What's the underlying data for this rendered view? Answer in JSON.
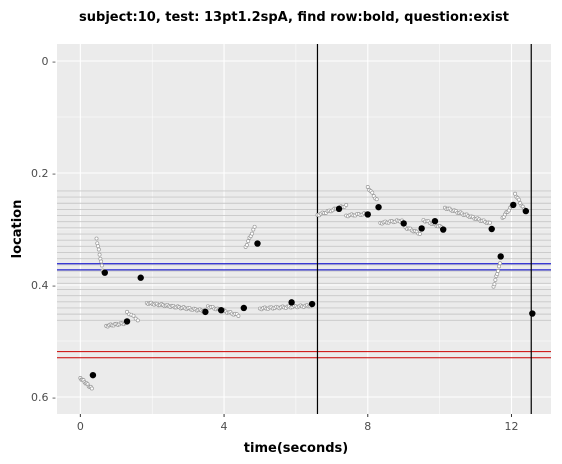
{
  "chart_data": {
    "type": "scatter",
    "title": "subject:10, test: 13pt1.2spA, find row:bold, question:exist",
    "xlabel": "time(seconds)",
    "ylabel": "location",
    "xlim": [
      -0.65,
      13.1
    ],
    "ylim": [
      0.0,
      0.6
    ],
    "y_reversed": true,
    "x_ticks": [
      0,
      4,
      8,
      12
    ],
    "x_tick_labels": [
      "0",
      "4",
      "8",
      "12"
    ],
    "y_ticks": [
      0.0,
      0.2,
      0.4,
      0.6
    ],
    "y_tick_labels": [
      "0 -",
      "0.2 -",
      "0.4 -",
      "0.6 -"
    ],
    "grid": true,
    "legend": "none",
    "colors": {
      "panel": "#ebebeb",
      "grid": "#ffffff",
      "text_rows": "#c8c8c8",
      "blue_band": "#0000cc",
      "red_band": "#cc0000",
      "vlines": "#000000",
      "fixation": "#000000",
      "samples": "#9a9a9a"
    },
    "text_row_lines": [
      0.232,
      0.243,
      0.254,
      0.265,
      0.276,
      0.287,
      0.298,
      0.309,
      0.32,
      0.331,
      0.342,
      0.353,
      0.364,
      0.375,
      0.386,
      0.397,
      0.408,
      0.419,
      0.43,
      0.441,
      0.452,
      0.463
    ],
    "blue_hlines": [
      0.362,
      0.373
    ],
    "red_hlines": [
      0.519,
      0.53
    ],
    "vertical_lines": [
      6.6,
      12.55
    ],
    "fixations": [
      {
        "x": 0.35,
        "y": 0.561
      },
      {
        "x": 0.68,
        "y": 0.378
      },
      {
        "x": 1.3,
        "y": 0.465
      },
      {
        "x": 1.68,
        "y": 0.387
      },
      {
        "x": 3.48,
        "y": 0.448
      },
      {
        "x": 3.92,
        "y": 0.445
      },
      {
        "x": 4.55,
        "y": 0.441
      },
      {
        "x": 4.93,
        "y": 0.326
      },
      {
        "x": 5.88,
        "y": 0.431
      },
      {
        "x": 6.45,
        "y": 0.434
      },
      {
        "x": 7.2,
        "y": 0.264
      },
      {
        "x": 8.0,
        "y": 0.274
      },
      {
        "x": 8.3,
        "y": 0.261
      },
      {
        "x": 9.0,
        "y": 0.29
      },
      {
        "x": 9.5,
        "y": 0.299
      },
      {
        "x": 9.87,
        "y": 0.286
      },
      {
        "x": 10.1,
        "y": 0.301
      },
      {
        "x": 11.45,
        "y": 0.3
      },
      {
        "x": 11.7,
        "y": 0.349
      },
      {
        "x": 12.05,
        "y": 0.257
      },
      {
        "x": 12.4,
        "y": 0.268
      },
      {
        "x": 12.58,
        "y": 0.451
      }
    ],
    "sample_segments": [
      {
        "x0": 0.0,
        "x1": 0.32,
        "y0": 0.566,
        "y1": 0.585,
        "n": 12
      },
      {
        "x0": 0.45,
        "x1": 0.62,
        "y0": 0.317,
        "y1": 0.373,
        "n": 9
      },
      {
        "x0": 0.72,
        "x1": 1.25,
        "y0": 0.473,
        "y1": 0.468,
        "n": 14
      },
      {
        "x0": 1.3,
        "x1": 1.6,
        "y0": 0.448,
        "y1": 0.462,
        "n": 6
      },
      {
        "x0": 1.85,
        "x1": 3.45,
        "y0": 0.432,
        "y1": 0.446,
        "n": 40
      },
      {
        "x0": 3.55,
        "x1": 4.4,
        "y0": 0.438,
        "y1": 0.454,
        "n": 20
      },
      {
        "x0": 4.6,
        "x1": 4.85,
        "y0": 0.332,
        "y1": 0.297,
        "n": 8
      },
      {
        "x0": 5.0,
        "x1": 6.4,
        "y0": 0.442,
        "y1": 0.437,
        "n": 32
      },
      {
        "x0": 6.6,
        "x1": 7.4,
        "y0": 0.275,
        "y1": 0.258,
        "n": 18
      },
      {
        "x0": 7.4,
        "x1": 7.95,
        "y0": 0.276,
        "y1": 0.273,
        "n": 12
      },
      {
        "x0": 8.0,
        "x1": 8.25,
        "y0": 0.225,
        "y1": 0.248,
        "n": 7
      },
      {
        "x0": 8.35,
        "x1": 8.95,
        "y0": 0.289,
        "y1": 0.285,
        "n": 14
      },
      {
        "x0": 9.05,
        "x1": 9.45,
        "y0": 0.297,
        "y1": 0.308,
        "n": 10
      },
      {
        "x0": 9.55,
        "x1": 10.05,
        "y0": 0.284,
        "y1": 0.297,
        "n": 12
      },
      {
        "x0": 10.15,
        "x1": 11.4,
        "y0": 0.262,
        "y1": 0.29,
        "n": 30
      },
      {
        "x0": 11.5,
        "x1": 11.68,
        "y0": 0.403,
        "y1": 0.362,
        "n": 8
      },
      {
        "x0": 11.75,
        "x1": 12.0,
        "y0": 0.28,
        "y1": 0.26,
        "n": 8
      },
      {
        "x0": 12.1,
        "x1": 12.35,
        "y0": 0.237,
        "y1": 0.265,
        "n": 8
      }
    ]
  }
}
